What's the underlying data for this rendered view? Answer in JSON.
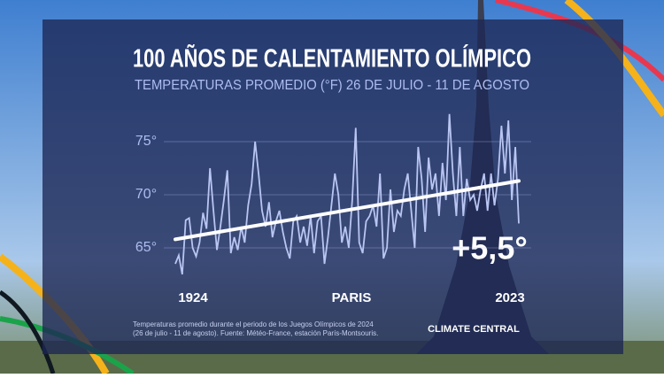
{
  "chart_data": {
    "type": "line",
    "title": "100 AÑOS DE CALENTAMIENTO OLÍMPICO",
    "subtitle": "TEMPERATURAS PROMEDIO (°F) 26 DE JULIO - 11 DE AGOSTO",
    "location": "PARIS",
    "annotation": "+5,5°",
    "source": [
      "Temperaturas promedio durante el periodo de los Juegos Olímpicos de 2024",
      "(26 de julio - 11 de agosto). Fuente: Météo-France, estación París-Montsouris."
    ],
    "brand": "CLIMATE CENTRAL",
    "x": [
      1924,
      1925,
      1926,
      1927,
      1928,
      1929,
      1930,
      1931,
      1932,
      1933,
      1934,
      1935,
      1936,
      1937,
      1938,
      1939,
      1940,
      1941,
      1942,
      1943,
      1944,
      1945,
      1946,
      1947,
      1948,
      1949,
      1950,
      1951,
      1952,
      1953,
      1954,
      1955,
      1956,
      1957,
      1958,
      1959,
      1960,
      1961,
      1962,
      1963,
      1964,
      1965,
      1966,
      1967,
      1968,
      1969,
      1970,
      1971,
      1972,
      1973,
      1974,
      1975,
      1976,
      1977,
      1978,
      1979,
      1980,
      1981,
      1982,
      1983,
      1984,
      1985,
      1986,
      1987,
      1988,
      1989,
      1990,
      1991,
      1992,
      1993,
      1994,
      1995,
      1996,
      1997,
      1998,
      1999,
      2000,
      2001,
      2002,
      2003,
      2004,
      2005,
      2006,
      2007,
      2008,
      2009,
      2010,
      2011,
      2012,
      2013,
      2014,
      2015,
      2016,
      2017,
      2018,
      2019,
      2020,
      2021,
      2022,
      2023
    ],
    "series": [
      {
        "color": "#b9c5f2",
        "values": [
          63.5,
          64.3,
          62.5,
          67.6,
          67.8,
          65.0,
          64.2,
          65.5,
          68.3,
          66.8,
          72.5,
          68.5,
          64.8,
          67.0,
          69.5,
          72.3,
          64.5,
          66.0,
          64.8,
          67.0,
          65.5,
          69.0,
          71.0,
          75.0,
          72.0,
          68.5,
          67.0,
          69.3,
          66.0,
          67.5,
          68.5,
          66.5,
          65.0,
          64.0,
          67.5,
          68.0,
          65.5,
          67.0,
          65.2,
          68.0,
          64.5,
          67.5,
          68.0,
          63.5,
          66.0,
          69.0,
          72.0,
          70.0,
          65.5,
          67.0,
          65.0,
          69.5,
          76.3,
          65.5,
          64.5,
          67.5,
          68.0,
          69.0,
          67.0,
          72.0,
          64.0,
          65.0,
          70.5,
          66.5,
          68.5,
          68.0,
          70.5,
          72.0,
          68.5,
          65.0,
          74.5,
          71.5,
          66.5,
          73.5,
          70.5,
          72.0,
          68.0,
          73.0,
          69.5,
          77.6,
          72.0,
          68.0,
          74.5,
          68.0,
          71.5,
          69.5,
          70.0,
          68.5,
          70.5,
          72.0,
          68.5,
          72.0,
          69.0,
          71.5,
          76.5,
          72.0,
          77.0,
          69.5,
          74.5,
          67.3
        ]
      }
    ],
    "trend": {
      "x": [
        1924,
        2023
      ],
      "values": [
        65.8,
        71.3
      ],
      "color": "#ffffff"
    },
    "xlim": [
      1924,
      2023
    ],
    "xticks": [
      1924,
      2023
    ],
    "ylim": [
      62,
      78
    ],
    "yticks": [
      {
        "value": 65,
        "label": "65°"
      },
      {
        "value": 70,
        "label": "70°"
      },
      {
        "value": 75,
        "label": "75°"
      }
    ],
    "grid": true
  }
}
